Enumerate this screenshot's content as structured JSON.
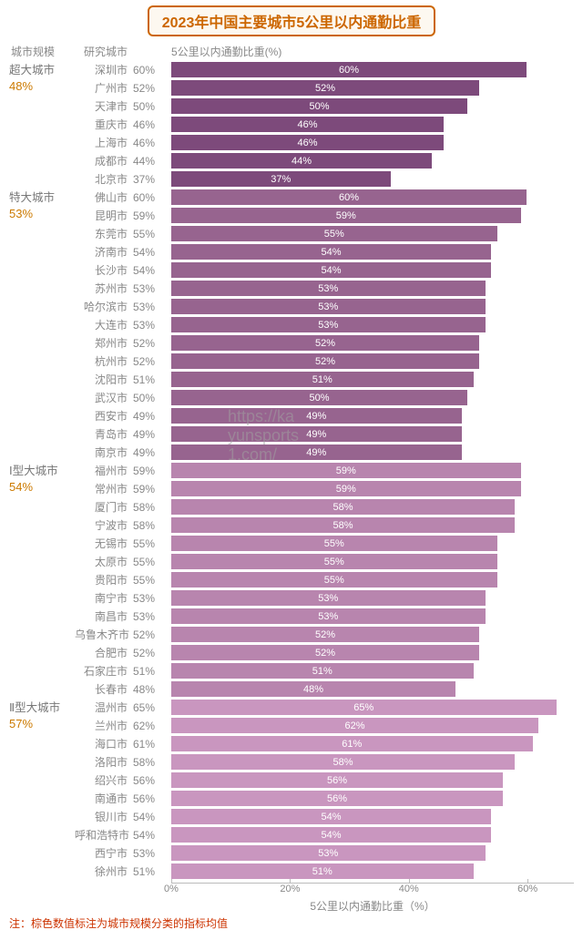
{
  "title": "2023年中国主要城市5公里以内通勤比重",
  "headers": {
    "scale": "城市规模",
    "city": "研究城市",
    "metric": "5公里以内通勤比重(%)"
  },
  "axis": {
    "ticks": [
      "0%",
      "20%",
      "40%",
      "60%"
    ],
    "tick_positions_pct": [
      0,
      29.5,
      59,
      88.5
    ],
    "title": "5公里以内通勤比重（%）",
    "max_value": 68
  },
  "footnote": "注：棕色数值标注为城市规模分类的指标均值",
  "watermark_lines": [
    "https://ka",
    "yunsports",
    "1.com/"
  ],
  "colors": {
    "title_border": "#cc6600",
    "avg_text": "#cc7a00",
    "footnote": "#cc3300",
    "bar_text": "#ffffff",
    "body_text": "#888888"
  },
  "groups": [
    {
      "scale_name": "超大城市",
      "avg": "48%",
      "bar_color": "#7d4a7b",
      "cities": [
        {
          "name": "深圳市",
          "value": 60
        },
        {
          "name": "广州市",
          "value": 52
        },
        {
          "name": "天津市",
          "value": 50
        },
        {
          "name": "重庆市",
          "value": 46
        },
        {
          "name": "上海市",
          "value": 46
        },
        {
          "name": "成都市",
          "value": 44
        },
        {
          "name": "北京市",
          "value": 37
        }
      ]
    },
    {
      "scale_name": "特大城市",
      "avg": "53%",
      "bar_color": "#97648f",
      "cities": [
        {
          "name": "佛山市",
          "value": 60
        },
        {
          "name": "昆明市",
          "value": 59
        },
        {
          "name": "东莞市",
          "value": 55
        },
        {
          "name": "济南市",
          "value": 54
        },
        {
          "name": "长沙市",
          "value": 54
        },
        {
          "name": "苏州市",
          "value": 53
        },
        {
          "name": "哈尔滨市",
          "value": 53
        },
        {
          "name": "大连市",
          "value": 53
        },
        {
          "name": "郑州市",
          "value": 52
        },
        {
          "name": "杭州市",
          "value": 52
        },
        {
          "name": "沈阳市",
          "value": 51
        },
        {
          "name": "武汉市",
          "value": 50
        },
        {
          "name": "西安市",
          "value": 49
        },
        {
          "name": "青岛市",
          "value": 49
        },
        {
          "name": "南京市",
          "value": 49
        }
      ]
    },
    {
      "scale_name": "Ⅰ型大城市",
      "avg": "54%",
      "bar_color": "#b885ae",
      "cities": [
        {
          "name": "福州市",
          "value": 59
        },
        {
          "name": "常州市",
          "value": 59
        },
        {
          "name": "厦门市",
          "value": 58
        },
        {
          "name": "宁波市",
          "value": 58
        },
        {
          "name": "无锡市",
          "value": 55
        },
        {
          "name": "太原市",
          "value": 55
        },
        {
          "name": "贵阳市",
          "value": 55
        },
        {
          "name": "南宁市",
          "value": 53
        },
        {
          "name": "南昌市",
          "value": 53
        },
        {
          "name": "乌鲁木齐市",
          "value": 52
        },
        {
          "name": "合肥市",
          "value": 52
        },
        {
          "name": "石家庄市",
          "value": 51
        },
        {
          "name": "长春市",
          "value": 48
        }
      ]
    },
    {
      "scale_name": "Ⅱ型大城市",
      "avg": "57%",
      "bar_color": "#c996bf",
      "cities": [
        {
          "name": "温州市",
          "value": 65
        },
        {
          "name": "兰州市",
          "value": 62
        },
        {
          "name": "海口市",
          "value": 61
        },
        {
          "name": "洛阳市",
          "value": 58
        },
        {
          "name": "绍兴市",
          "value": 56
        },
        {
          "name": "南通市",
          "value": 56
        },
        {
          "name": "银川市",
          "value": 54
        },
        {
          "name": "呼和浩特市",
          "value": 54
        },
        {
          "name": "西宁市",
          "value": 53
        },
        {
          "name": "徐州市",
          "value": 51
        }
      ]
    }
  ]
}
